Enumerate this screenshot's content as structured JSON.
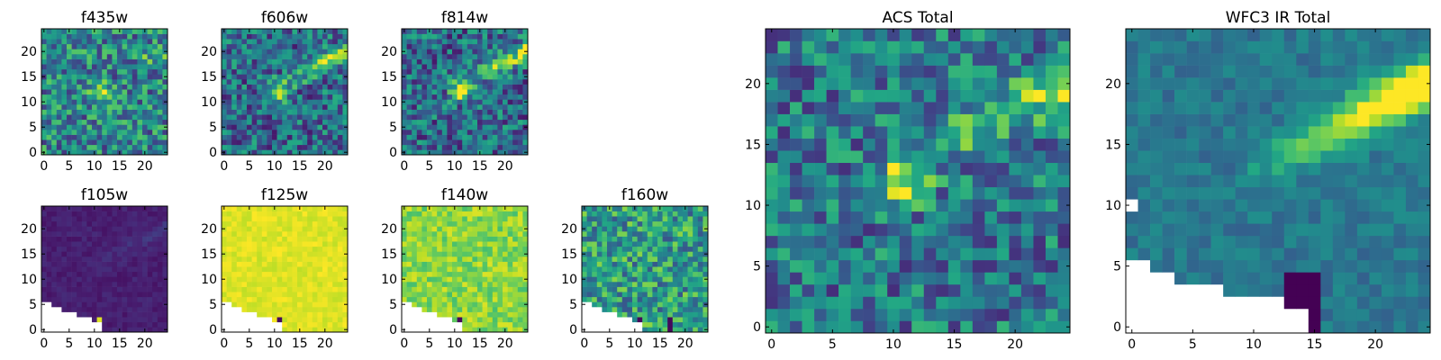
{
  "chart_data": [
    {
      "type": "heatmap",
      "title": "f435w",
      "x_ticks": [
        "0",
        "5",
        "10",
        "15",
        "20"
      ],
      "y_ticks": [
        "0",
        "5",
        "10",
        "15",
        "20"
      ],
      "xlim": [
        0,
        25
      ],
      "ylim": [
        0,
        25
      ],
      "colormap": "viridis",
      "pattern": "noise_with_compact_source_at_11_12"
    },
    {
      "type": "heatmap",
      "title": "f606w",
      "x_ticks": [
        "0",
        "5",
        "10",
        "15",
        "20"
      ],
      "y_ticks": [
        "0",
        "5",
        "10",
        "15",
        "20"
      ],
      "xlim": [
        0,
        25
      ],
      "ylim": [
        0,
        25
      ],
      "colormap": "viridis",
      "pattern": "compact_source_and_diagonal_streak"
    },
    {
      "type": "heatmap",
      "title": "f814w",
      "x_ticks": [
        "0",
        "5",
        "10",
        "15",
        "20"
      ],
      "y_ticks": [
        "0",
        "5",
        "10",
        "15",
        "20"
      ],
      "xlim": [
        0,
        25
      ],
      "ylim": [
        0,
        25
      ],
      "colormap": "viridis",
      "pattern": "compact_source_and_diagonal_streak"
    },
    {
      "type": "heatmap",
      "title": "f105w",
      "x_ticks": [
        "0",
        "5",
        "10",
        "15",
        "20"
      ],
      "y_ticks": [
        "0",
        "5",
        "10",
        "15",
        "20"
      ],
      "xlim": [
        0,
        25
      ],
      "ylim": [
        0,
        25
      ],
      "colormap": "viridis",
      "pattern": "low_values_with_masked_lower_left"
    },
    {
      "type": "heatmap",
      "title": "f125w",
      "x_ticks": [
        "0",
        "5",
        "10",
        "15",
        "20"
      ],
      "y_ticks": [
        "0",
        "5",
        "10",
        "15",
        "20"
      ],
      "xlim": [
        0,
        25
      ],
      "ylim": [
        0,
        25
      ],
      "colormap": "viridis",
      "pattern": "high_values_with_masked_lower_left"
    },
    {
      "type": "heatmap",
      "title": "f140w",
      "x_ticks": [
        "0",
        "5",
        "10",
        "15",
        "20"
      ],
      "y_ticks": [
        "0",
        "5",
        "10",
        "15",
        "20"
      ],
      "xlim": [
        0,
        25
      ],
      "ylim": [
        0,
        25
      ],
      "colormap": "viridis",
      "pattern": "high_values_with_masked_lower_left"
    },
    {
      "type": "heatmap",
      "title": "f160w",
      "x_ticks": [
        "0",
        "5",
        "10",
        "15",
        "20"
      ],
      "y_ticks": [
        "0",
        "5",
        "10",
        "15",
        "20"
      ],
      "xlim": [
        0,
        25
      ],
      "ylim": [
        0,
        25
      ],
      "colormap": "viridis",
      "pattern": "mixed_values_with_masked_lower_left"
    },
    {
      "type": "heatmap",
      "title": "ACS Total",
      "x_ticks": [
        "0",
        "5",
        "10",
        "15",
        "20"
      ],
      "y_ticks": [
        "0",
        "5",
        "10",
        "15",
        "20"
      ],
      "xlim": [
        0,
        25
      ],
      "ylim": [
        0,
        25
      ],
      "colormap": "viridis",
      "pattern": "compact_source_and_diagonal_streak"
    },
    {
      "type": "heatmap",
      "title": "WFC3 IR Total",
      "x_ticks": [
        "0",
        "5",
        "10",
        "15",
        "20"
      ],
      "y_ticks": [
        "0",
        "5",
        "10",
        "15",
        "20"
      ],
      "xlim": [
        0,
        25
      ],
      "ylim": [
        0,
        25
      ],
      "colormap": "viridis",
      "pattern": "diagonal_streak_with_masked_lower_region"
    }
  ],
  "colors": {
    "viridis_low": "#440154",
    "viridis_mid": "#21918c",
    "viridis_high": "#fde725",
    "masked": "#ffffff"
  }
}
